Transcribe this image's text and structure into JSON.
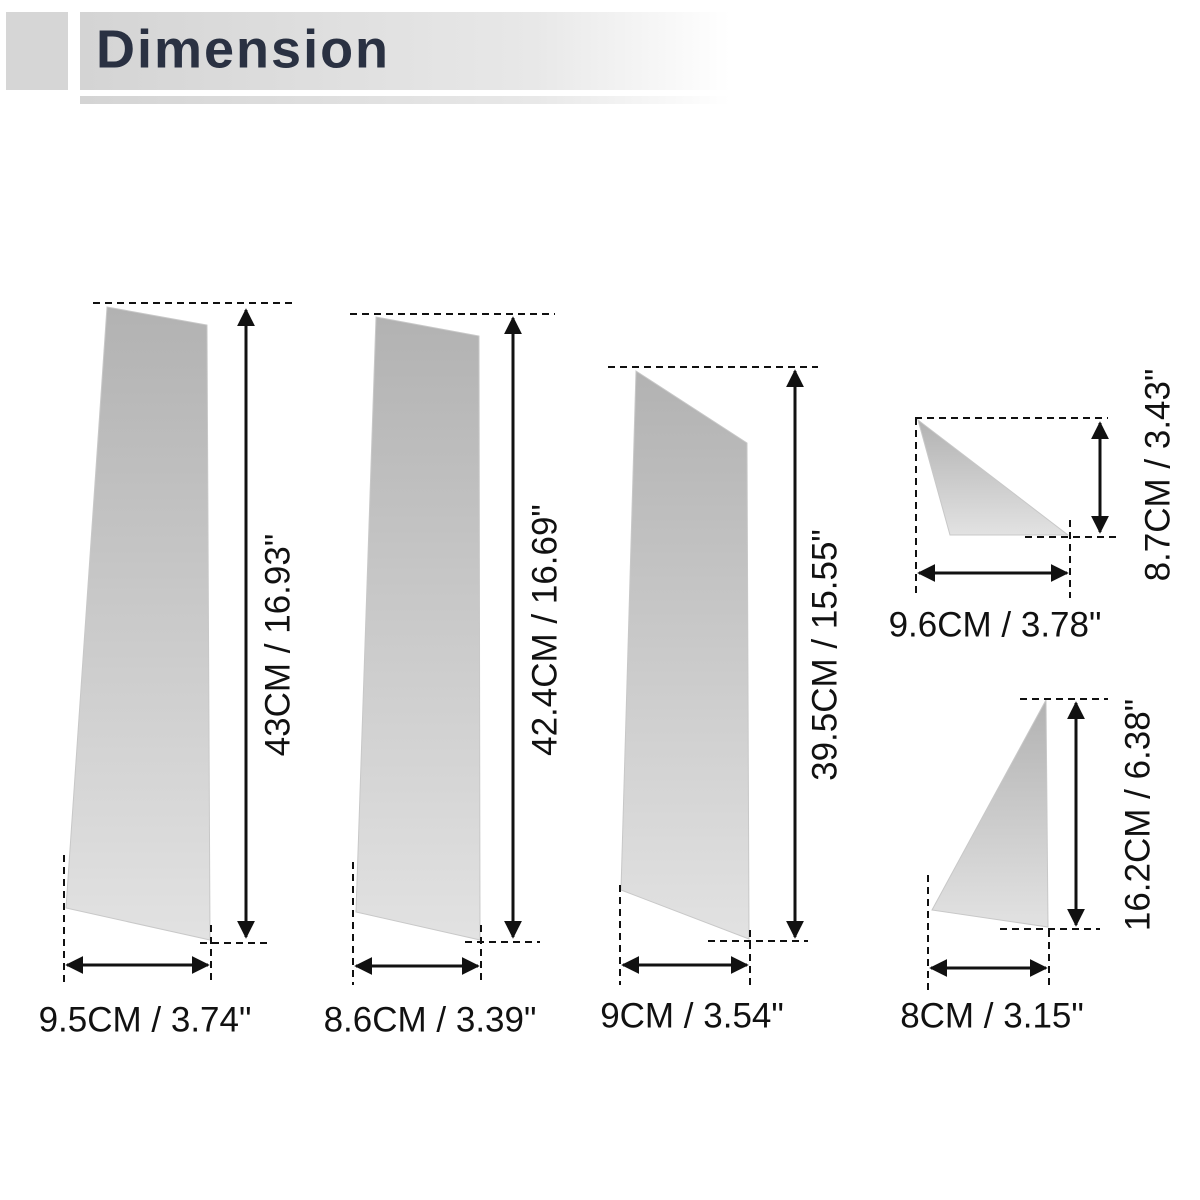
{
  "header": {
    "title": "Dimension"
  },
  "pieces": [
    {
      "height": "43CM / 16.93\"",
      "width": "9.5CM / 3.74\""
    },
    {
      "height": "42.4CM / 16.69\"",
      "width": "8.6CM / 3.39\""
    },
    {
      "height": "39.5CM / 15.55\"",
      "width": "9CM / 3.54\""
    },
    {
      "height": "8.7CM / 3.43\"",
      "width": "9.6CM / 3.78\""
    },
    {
      "height": "16.2CM / 6.38\"",
      "width": "8CM / 3.15\""
    }
  ]
}
